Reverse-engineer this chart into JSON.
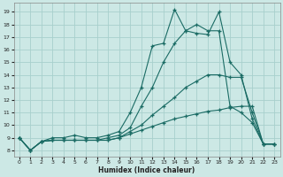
{
  "xlabel": "Humidex (Indice chaleur)",
  "background_color": "#cce8e5",
  "grid_color": "#a8d0cc",
  "line_color": "#1a6b64",
  "xlim": [
    -0.5,
    23.5
  ],
  "ylim": [
    7.5,
    19.7
  ],
  "xticks": [
    0,
    1,
    2,
    3,
    4,
    5,
    6,
    7,
    8,
    9,
    10,
    11,
    12,
    13,
    14,
    15,
    16,
    17,
    18,
    19,
    20,
    21,
    22,
    23
  ],
  "yticks": [
    8,
    9,
    10,
    11,
    12,
    13,
    14,
    15,
    16,
    17,
    18,
    19
  ],
  "series": [
    [
      9.0,
      8.0,
      8.7,
      9.0,
      9.0,
      9.2,
      9.0,
      9.0,
      9.2,
      9.5,
      11.0,
      13.0,
      16.3,
      16.5,
      19.2,
      17.5,
      17.3,
      17.2,
      19.0,
      15.0,
      14.0,
      10.5,
      8.5,
      8.5
    ],
    [
      9.0,
      8.0,
      8.7,
      8.8,
      8.8,
      8.8,
      8.8,
      8.8,
      9.0,
      9.2,
      9.8,
      11.5,
      13.0,
      15.0,
      16.5,
      17.5,
      18.0,
      17.5,
      17.5,
      11.5,
      11.0,
      10.2,
      8.5,
      8.5
    ],
    [
      9.0,
      8.0,
      8.7,
      8.8,
      8.8,
      8.8,
      8.8,
      8.8,
      8.8,
      9.0,
      9.5,
      10.0,
      10.8,
      11.5,
      12.2,
      13.0,
      13.5,
      14.0,
      14.0,
      13.8,
      13.8,
      11.0,
      8.5,
      8.5
    ],
    [
      9.0,
      8.0,
      8.7,
      8.8,
      8.8,
      8.8,
      8.8,
      8.8,
      8.8,
      9.0,
      9.3,
      9.6,
      9.9,
      10.2,
      10.5,
      10.7,
      10.9,
      11.1,
      11.2,
      11.4,
      11.5,
      11.5,
      8.5,
      8.5
    ]
  ]
}
